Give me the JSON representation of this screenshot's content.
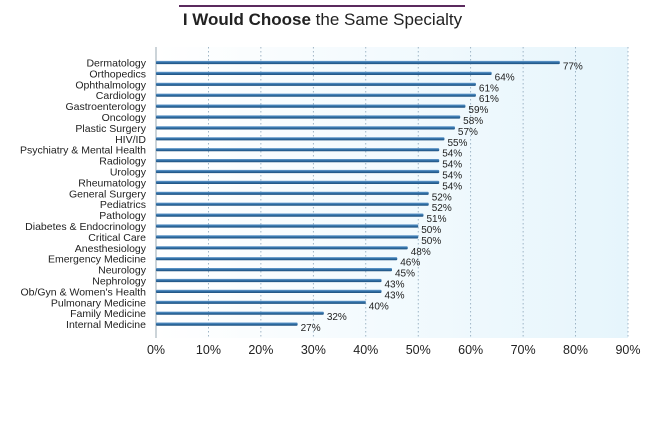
{
  "title": {
    "bold": "I Would Choose",
    "rest": " the Same Specialty"
  },
  "chart_data": {
    "type": "bar",
    "orientation": "horizontal",
    "title": "I Would Choose the Same Specialty",
    "categories": [
      "Dermatology",
      "Orthopedics",
      "Ophthalmology",
      "Cardiology",
      "Gastroenterology",
      "Oncology",
      "Plastic Surgery",
      "HIV/ID",
      "Psychiatry & Mental Health",
      "Radiology",
      "Urology",
      "Rheumatology",
      "General Surgery",
      "Pediatrics",
      "Pathology",
      "Diabetes & Endocrinology",
      "Critical Care",
      "Anesthesiology",
      "Emergency Medicine",
      "Neurology",
      "Nephrology",
      "Ob/Gyn & Women's Health",
      "Pulmonary Medicine",
      "Family Medicine",
      "Internal Medicine"
    ],
    "values": [
      77,
      64,
      61,
      61,
      59,
      58,
      57,
      55,
      54,
      54,
      54,
      54,
      52,
      52,
      51,
      50,
      50,
      48,
      46,
      45,
      43,
      43,
      40,
      32,
      27
    ],
    "value_labels": [
      "77%",
      "64%",
      "61%",
      "61%",
      "59%",
      "58%",
      "57%",
      "55%",
      "54%",
      "54%",
      "54%",
      "54%",
      "52%",
      "52%",
      "51%",
      "50%",
      "50%",
      "48%",
      "46%",
      "45%",
      "43%",
      "43%",
      "40%",
      "32%",
      "27%"
    ],
    "xlim": [
      0,
      90
    ],
    "xticks": [
      0,
      10,
      20,
      30,
      40,
      50,
      60,
      70,
      80,
      90
    ],
    "xtick_labels": [
      "0%",
      "10%",
      "20%",
      "30%",
      "40%",
      "50%",
      "60%",
      "70%",
      "80%",
      "90%"
    ],
    "xlabel": "",
    "ylabel": "",
    "grid": "vertical-dotted",
    "legend": "none",
    "colors": {
      "bar": "#2e6da4",
      "background": "#eaf6fc",
      "grid": "#8aa4b8",
      "title_bar": "#5b2a5e"
    }
  }
}
